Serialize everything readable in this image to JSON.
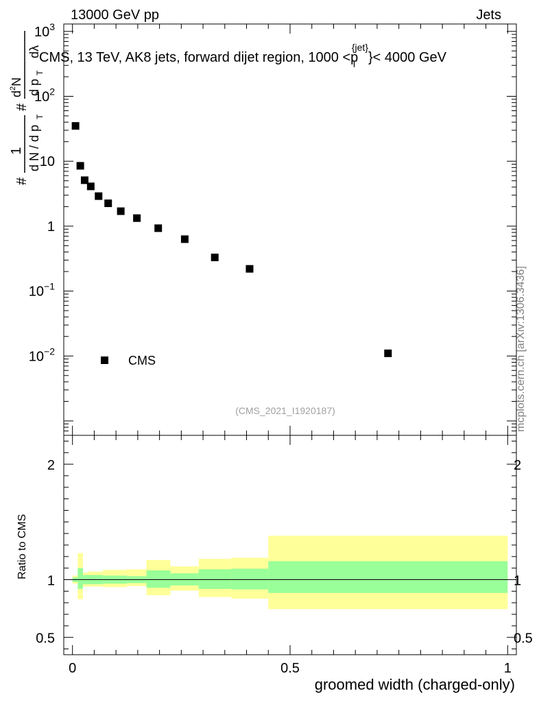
{
  "header": {
    "energy_label": "13000 GeV pp",
    "category_label": "Jets"
  },
  "watermark": {
    "side_text": "mcplots.cern.ch [arXiv:1306.3436]",
    "analysis_id": "(CMS_2021_I1920187)"
  },
  "chart_data": [
    {
      "type": "scatter",
      "title": "CMS, 13 TeV, AK8 jets, forward dijet region, 1000 <p_T^{jet}< 4000 GeV",
      "title_parts": {
        "prefix": "CMS, 13 TeV, AK8 jets, forward dijet region, 1000 <",
        "p": "p",
        "sub": "T",
        "sup": "{jet}",
        "suffix": "}< 4000 GeV"
      },
      "ylabel_parts": {
        "hash": "#",
        "one": "1",
        "dN_dpT": "d N / d p",
        "T": "T",
        "hash2": "#",
        "d2N": "d",
        "two": "2",
        "N": "N",
        "dpT": "d p",
        "dlambda": "dλ"
      },
      "yscale": "log",
      "ylim": [
        0.0006,
        1300
      ],
      "xlim": [
        -0.02,
        1.02
      ],
      "yticks": [
        {
          "value": 0.01,
          "base": "10",
          "exp": "−2"
        },
        {
          "value": 0.1,
          "base": "10",
          "exp": "−1"
        },
        {
          "value": 1,
          "label": "1"
        },
        {
          "value": 10,
          "label": "10"
        },
        {
          "value": 100,
          "base": "10",
          "exp": "2"
        },
        {
          "value": 1000,
          "base": "10",
          "exp": "3"
        }
      ],
      "legend": {
        "label": "CMS",
        "position": "bottom-left"
      },
      "series": [
        {
          "name": "CMS",
          "x": [
            0.007,
            0.018,
            0.028,
            0.042,
            0.06,
            0.082,
            0.111,
            0.148,
            0.197,
            0.258,
            0.327,
            0.407,
            0.725
          ],
          "y": [
            35,
            8.5,
            5.1,
            4.1,
            2.9,
            2.25,
            1.7,
            1.33,
            0.93,
            0.63,
            0.33,
            0.22,
            0.011
          ]
        }
      ]
    },
    {
      "type": "area",
      "ylabel": "Ratio to CMS",
      "xlabel": "groomed width (charged-only)",
      "xlim": [
        -0.02,
        1.02
      ],
      "ylim": [
        0.35,
        2.25
      ],
      "xticks": [
        {
          "value": 0,
          "label": "0"
        },
        {
          "value": 0.5,
          "label": "0.5"
        },
        {
          "value": 1,
          "label": "1"
        }
      ],
      "yticks": [
        {
          "value": 0.5,
          "label": "0.5"
        },
        {
          "value": 1,
          "label": "1"
        },
        {
          "value": 2,
          "label": "2"
        }
      ],
      "reference_line": 1.0,
      "colors": {
        "inner_band": "#99ff99",
        "outer_band": "#ffff99",
        "markers": "#000000"
      },
      "bins": [
        {
          "lo": 0.0,
          "hi": 0.012,
          "inner": [
            0.98,
            1.02
          ],
          "outer": [
            0.965,
            1.035
          ]
        },
        {
          "lo": 0.012,
          "hi": 0.024,
          "inner": [
            0.92,
            1.1
          ],
          "outer": [
            0.83,
            1.23
          ]
        },
        {
          "lo": 0.024,
          "hi": 0.035,
          "inner": [
            0.96,
            1.04
          ],
          "outer": [
            0.94,
            1.06
          ]
        },
        {
          "lo": 0.035,
          "hi": 0.07,
          "inner": [
            0.96,
            1.04
          ],
          "outer": [
            0.94,
            1.07
          ]
        },
        {
          "lo": 0.07,
          "hi": 0.125,
          "inner": [
            0.965,
            1.035
          ],
          "outer": [
            0.935,
            1.085
          ]
        },
        {
          "lo": 0.125,
          "hi": 0.17,
          "inner": [
            0.97,
            1.03
          ],
          "outer": [
            0.945,
            1.09
          ]
        },
        {
          "lo": 0.17,
          "hi": 0.225,
          "inner": [
            0.93,
            1.08
          ],
          "outer": [
            0.865,
            1.17
          ]
        },
        {
          "lo": 0.225,
          "hi": 0.29,
          "inner": [
            0.95,
            1.055
          ],
          "outer": [
            0.905,
            1.115
          ]
        },
        {
          "lo": 0.29,
          "hi": 0.365,
          "inner": [
            0.92,
            1.09
          ],
          "outer": [
            0.85,
            1.18
          ]
        },
        {
          "lo": 0.365,
          "hi": 0.45,
          "inner": [
            0.915,
            1.095
          ],
          "outer": [
            0.835,
            1.19
          ]
        },
        {
          "lo": 0.45,
          "hi": 1.0,
          "inner": [
            0.885,
            1.16
          ],
          "outer": [
            0.745,
            1.38
          ]
        }
      ]
    }
  ]
}
